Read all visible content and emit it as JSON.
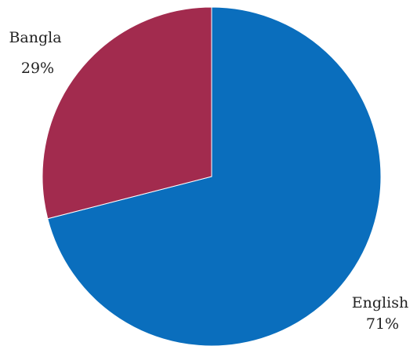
{
  "chart_data": {
    "type": "pie",
    "title": "",
    "categories": [
      "English",
      "Bangla"
    ],
    "values": [
      71,
      29
    ],
    "labels": [
      {
        "name": "English",
        "percent": "71%"
      },
      {
        "name": "Bangla",
        "percent": "29%"
      }
    ],
    "colors": [
      "#0A6EBD",
      "#A22B4E"
    ],
    "start_angle": "12 o'clock",
    "direction": "clockwise",
    "legend": "none",
    "label_position": "outside"
  }
}
